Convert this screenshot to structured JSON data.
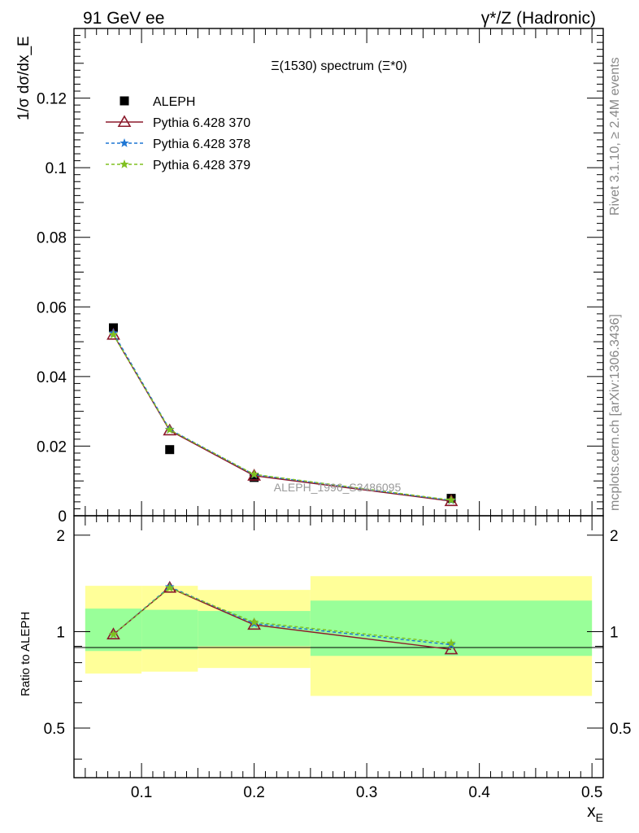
{
  "header": {
    "left": "91 GeV ee",
    "right": "γ*/Z (Hadronic)"
  },
  "side_labels": {
    "rivet": "Rivet 3.1.10, ≥ 2.4M events",
    "mcplots": "mcplots.cern.ch [arXiv:1306.3436]"
  },
  "colors": {
    "data": "#000000",
    "p370": "#8b1a2b",
    "p378": "#1f77d4",
    "p379": "#80c020",
    "band_inner": "#99ff99",
    "band_outer": "#ffff99"
  },
  "chart_data": [
    {
      "type": "scatter",
      "title": "Ξ(1530) spectrum (Ξ*0)",
      "xlabel": "x_E",
      "ylabel": "1/σ dσ/dx_E",
      "xlim": [
        0.04,
        0.51
      ],
      "ylim": [
        0,
        0.14
      ],
      "yticks": [
        "0",
        "0.02",
        "0.04",
        "0.06",
        "0.08",
        "0.1",
        "0.12"
      ],
      "annotation": "ALEPH_1996_S3486095",
      "legend": [
        "ALEPH",
        "Pythia 6.428 370",
        "Pythia 6.428 378",
        "Pythia 6.428 379"
      ],
      "legend_position": "top-left",
      "x": [
        0.075,
        0.125,
        0.2,
        0.375
      ],
      "series": [
        {
          "name": "ALEPH",
          "values": [
            0.054,
            0.019,
            0.011,
            0.005
          ]
        },
        {
          "name": "Pythia 6.428 370",
          "values": [
            0.052,
            0.0245,
            0.0115,
            0.0042
          ]
        },
        {
          "name": "Pythia 6.428 378",
          "values": [
            0.0525,
            0.0248,
            0.0118,
            0.0044
          ]
        },
        {
          "name": "Pythia 6.428 379",
          "values": [
            0.052,
            0.0247,
            0.0119,
            0.0045
          ]
        }
      ]
    },
    {
      "type": "line",
      "ylabel": "Ratio to ALEPH",
      "xlabel": "x_E",
      "xlim": [
        0.04,
        0.51
      ],
      "ylim": [
        0.35,
        2.3
      ],
      "xticks": [
        "0.1",
        "0.2",
        "0.3",
        "0.4",
        "0.5"
      ],
      "yticks": [
        "0.5",
        "1",
        "2"
      ],
      "bands": [
        {
          "x0": 0.05,
          "x1": 0.1,
          "inner": [
            0.87,
            1.18
          ],
          "outer": [
            0.74,
            1.39
          ]
        },
        {
          "x0": 0.1,
          "x1": 0.15,
          "inner": [
            0.88,
            1.17
          ],
          "outer": [
            0.75,
            1.39
          ]
        },
        {
          "x0": 0.15,
          "x1": 0.25,
          "inner": [
            0.9,
            1.16
          ],
          "outer": [
            0.77,
            1.35
          ]
        },
        {
          "x0": 0.25,
          "x1": 0.5,
          "inner": [
            0.84,
            1.25
          ],
          "outer": [
            0.63,
            1.49
          ]
        }
      ],
      "x": [
        0.075,
        0.125,
        0.2,
        0.375
      ],
      "series": [
        {
          "name": "Pythia 6.428 370",
          "values": [
            0.98,
            1.37,
            1.05,
            0.88
          ]
        },
        {
          "name": "Pythia 6.428 378",
          "values": [
            0.98,
            1.38,
            1.06,
            0.91
          ]
        },
        {
          "name": "Pythia 6.428 379",
          "values": [
            0.98,
            1.37,
            1.07,
            0.92
          ]
        }
      ]
    }
  ]
}
